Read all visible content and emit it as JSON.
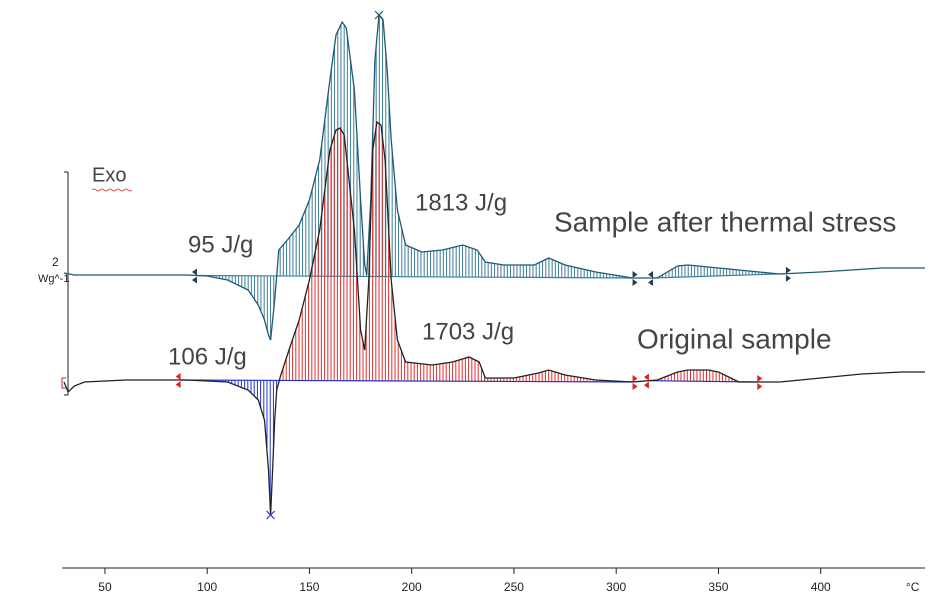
{
  "chart_data": {
    "type": "line",
    "xlim": [
      29,
      451
    ],
    "xticks": [
      50,
      100,
      150,
      200,
      250,
      300,
      350,
      400
    ],
    "x_label": "°C",
    "ylim": [
      0,
      5.6
    ],
    "y_label": "Wg^-1",
    "y_scale_label": "2",
    "exo_label": "Exo",
    "series": [
      {
        "name": "Sample after thermal stress",
        "color": "#1f5a73",
        "fill_above": "#3a7f9a",
        "fill_below": "#3a7f9a",
        "x": [
          30,
          35,
          90,
          100,
          110,
          120,
          125,
          128,
          130,
          131,
          133,
          135,
          140,
          145,
          150,
          155,
          160,
          163,
          166,
          168,
          172,
          175,
          177,
          178,
          180,
          182,
          184,
          186,
          188,
          190,
          193,
          197,
          205,
          215,
          225,
          232,
          236,
          245,
          260,
          267,
          275,
          290,
          308,
          320,
          330,
          335,
          345,
          360,
          380,
          400,
          430,
          451
        ],
        "values": [
          2.97,
          2.95,
          2.95,
          2.94,
          2.9,
          2.8,
          2.65,
          2.5,
          2.35,
          2.3,
          2.7,
          3.2,
          3.32,
          3.45,
          3.7,
          4.1,
          4.9,
          5.35,
          5.48,
          5.42,
          4.8,
          3.7,
          3.05,
          2.95,
          3.7,
          5.1,
          5.55,
          5.5,
          5.0,
          4.3,
          3.6,
          3.25,
          3.18,
          3.2,
          3.25,
          3.2,
          3.08,
          3.05,
          3.05,
          3.12,
          3.05,
          2.98,
          2.92,
          2.92,
          3.04,
          3.05,
          3.03,
          3.0,
          2.96,
          2.98,
          3.02,
          3.02
        ],
        "limits": [
          [
            95,
            308
          ],
          [
            318,
            383
          ]
        ],
        "annotations": [
          "95 J/g",
          "1813 J/g"
        ]
      },
      {
        "name": "Original sample",
        "color": "#222222",
        "fill_above": "#e0302e",
        "fill_below": "#2233cc",
        "x": [
          30,
          32,
          35,
          40,
          60,
          90,
          110,
          120,
          125,
          128,
          130,
          131,
          132,
          133,
          134,
          136,
          140,
          145,
          150,
          155,
          160,
          163,
          165,
          167,
          172,
          175,
          177,
          179,
          181,
          183,
          185,
          187,
          190,
          193,
          197,
          210,
          220,
          228,
          233,
          236,
          250,
          262,
          267,
          275,
          290,
          308,
          320,
          330,
          335,
          345,
          350,
          360,
          380,
          400,
          420,
          440,
          451
        ],
        "values": [
          1.88,
          1.78,
          1.84,
          1.88,
          1.9,
          1.9,
          1.88,
          1.8,
          1.7,
          1.5,
          1.0,
          0.55,
          1.0,
          1.5,
          1.8,
          1.95,
          2.2,
          2.5,
          2.9,
          3.4,
          4.2,
          4.4,
          4.42,
          4.35,
          3.4,
          2.4,
          2.2,
          2.9,
          4.2,
          4.48,
          4.45,
          4.1,
          2.9,
          2.3,
          2.08,
          2.05,
          2.08,
          2.13,
          2.08,
          1.92,
          1.92,
          1.97,
          2.0,
          1.95,
          1.9,
          1.88,
          1.9,
          1.98,
          2.0,
          2.0,
          1.98,
          1.88,
          1.88,
          1.92,
          1.96,
          1.98,
          1.98
        ],
        "limits": [
          [
            87,
            308
          ],
          [
            316,
            369
          ]
        ],
        "annotations": [
          "106 J/g",
          "1703 J/g"
        ]
      }
    ]
  }
}
